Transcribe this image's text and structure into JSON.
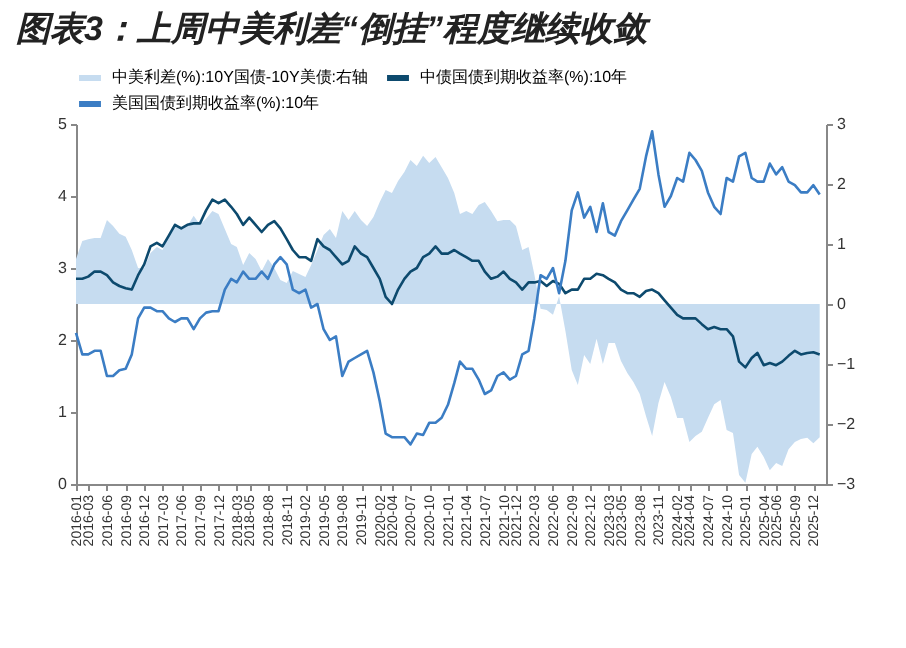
{
  "chart_data": {
    "type": "line",
    "title": "图表3：上周中美利差“倒挂”程度继续收敛",
    "x": [
      "2016-01",
      "2016-02",
      "2016-03",
      "2016-04",
      "2016-05",
      "2016-06",
      "2016-07",
      "2016-08",
      "2016-09",
      "2016-10",
      "2016-11",
      "2016-12",
      "2017-01",
      "2017-02",
      "2017-03",
      "2017-04",
      "2017-05",
      "2017-06",
      "2017-07",
      "2017-08",
      "2017-09",
      "2017-10",
      "2017-11",
      "2017-12",
      "2018-01",
      "2018-02",
      "2018-03",
      "2018-04",
      "2018-05",
      "2018-06",
      "2018-07",
      "2018-08",
      "2018-09",
      "2018-10",
      "2018-11",
      "2018-12",
      "2019-01",
      "2019-02",
      "2019-03",
      "2019-04",
      "2019-05",
      "2019-06",
      "2019-07",
      "2019-08",
      "2019-09",
      "2019-10",
      "2019-11",
      "2019-12",
      "2020-01",
      "2020-02",
      "2020-03",
      "2020-04",
      "2020-05",
      "2020-06",
      "2020-07",
      "2020-08",
      "2020-09",
      "2020-10",
      "2020-11",
      "2020-12",
      "2021-01",
      "2021-02",
      "2021-03",
      "2021-04",
      "2021-05",
      "2021-06",
      "2021-07",
      "2021-08",
      "2021-09",
      "2021-10",
      "2021-11",
      "2021-12",
      "2022-01",
      "2022-02",
      "2022-03",
      "2022-04",
      "2022-05",
      "2022-06",
      "2022-07",
      "2022-08",
      "2022-09",
      "2022-10",
      "2022-11",
      "2022-12",
      "2023-01",
      "2023-02",
      "2023-03",
      "2023-04",
      "2023-05",
      "2023-06",
      "2023-07",
      "2023-08",
      "2023-09",
      "2023-10",
      "2023-11",
      "2023-12",
      "2024-01",
      "2024-02",
      "2024-03",
      "2024-04",
      "2024-05",
      "2024-06",
      "2024-07",
      "2024-08",
      "2024-09",
      "2024-10",
      "2024-11",
      "2024-12",
      "2025-01",
      "2025-02",
      "2025-03",
      "2025-04",
      "2025-05",
      "2025-06",
      "2025-07",
      "2025-08",
      "2025-09",
      "2025-10",
      "2025-11",
      "2025-12",
      "2026-01"
    ],
    "series": [
      {
        "name": "中美利差(%):10Y国债-10Y美债:右轴",
        "type": "area",
        "axis": "y2",
        "color": "#c6dcf0",
        "values": [
          0.75,
          1.05,
          1.08,
          1.1,
          1.1,
          1.4,
          1.3,
          1.17,
          1.12,
          0.9,
          0.6,
          0.6,
          0.85,
          0.95,
          0.9,
          1.15,
          1.35,
          1.25,
          1.3,
          1.47,
          1.32,
          1.42,
          1.55,
          1.5,
          1.25,
          1.0,
          0.95,
          0.65,
          0.85,
          0.75,
          0.55,
          0.75,
          0.6,
          0.4,
          0.35,
          0.55,
          0.5,
          0.45,
          0.65,
          0.9,
          1.15,
          1.25,
          1.1,
          1.55,
          1.4,
          1.55,
          1.4,
          1.3,
          1.45,
          1.7,
          1.9,
          1.85,
          2.05,
          2.2,
          2.4,
          2.3,
          2.47,
          2.35,
          2.45,
          2.28,
          2.1,
          1.85,
          1.5,
          1.55,
          1.5,
          1.65,
          1.7,
          1.55,
          1.38,
          1.4,
          1.4,
          1.3,
          0.9,
          0.95,
          0.5,
          -0.08,
          -0.1,
          -0.18,
          0.13,
          -0.45,
          -1.1,
          -1.35,
          -0.85,
          -1.0,
          -0.58,
          -1.0,
          -0.65,
          -0.65,
          -0.95,
          -1.15,
          -1.3,
          -1.5,
          -1.87,
          -2.2,
          -1.65,
          -1.3,
          -1.55,
          -1.9,
          -1.9,
          -2.3,
          -2.2,
          -2.13,
          -1.9,
          -1.67,
          -1.6,
          -2.1,
          -2.15,
          -2.85,
          -2.98,
          -2.5,
          -2.38,
          -2.55,
          -2.77,
          -2.65,
          -2.7,
          -2.42,
          -2.3,
          -2.25,
          -2.23,
          -2.32,
          -2.22
        ]
      },
      {
        "name": "中债国债到期收益率(%):10年",
        "color": "#0d4a6e",
        "values": [
          2.85,
          2.85,
          2.88,
          2.95,
          2.95,
          2.9,
          2.8,
          2.75,
          2.72,
          2.7,
          2.9,
          3.05,
          3.3,
          3.35,
          3.3,
          3.45,
          3.6,
          3.55,
          3.6,
          3.62,
          3.62,
          3.8,
          3.95,
          3.9,
          3.95,
          3.85,
          3.75,
          3.6,
          3.7,
          3.6,
          3.5,
          3.6,
          3.65,
          3.55,
          3.4,
          3.25,
          3.15,
          3.15,
          3.1,
          3.4,
          3.3,
          3.25,
          3.15,
          3.05,
          3.1,
          3.3,
          3.2,
          3.15,
          3.0,
          2.85,
          2.6,
          2.5,
          2.7,
          2.85,
          2.95,
          3.0,
          3.15,
          3.2,
          3.3,
          3.2,
          3.2,
          3.25,
          3.2,
          3.15,
          3.1,
          3.1,
          2.95,
          2.85,
          2.88,
          2.95,
          2.85,
          2.8,
          2.7,
          2.8,
          2.8,
          2.82,
          2.75,
          2.82,
          2.78,
          2.65,
          2.7,
          2.7,
          2.85,
          2.85,
          2.92,
          2.9,
          2.85,
          2.8,
          2.7,
          2.65,
          2.65,
          2.6,
          2.68,
          2.7,
          2.65,
          2.55,
          2.45,
          2.35,
          2.3,
          2.3,
          2.3,
          2.22,
          2.15,
          2.18,
          2.15,
          2.15,
          2.05,
          1.7,
          1.62,
          1.75,
          1.82,
          1.65,
          1.68,
          1.65,
          1.7,
          1.78,
          1.85,
          1.8,
          1.82,
          1.83,
          1.8
        ]
      },
      {
        "name": "美国国债到期收益率(%):10年",
        "color": "#3b7dc4",
        "values": [
          2.1,
          1.8,
          1.8,
          1.85,
          1.85,
          1.5,
          1.5,
          1.58,
          1.6,
          1.8,
          2.3,
          2.45,
          2.45,
          2.4,
          2.4,
          2.3,
          2.25,
          2.3,
          2.3,
          2.15,
          2.3,
          2.38,
          2.4,
          2.4,
          2.7,
          2.85,
          2.8,
          2.95,
          2.85,
          2.85,
          2.95,
          2.85,
          3.05,
          3.15,
          3.05,
          2.7,
          2.65,
          2.7,
          2.45,
          2.5,
          2.15,
          2.0,
          2.05,
          1.5,
          1.7,
          1.75,
          1.8,
          1.85,
          1.55,
          1.15,
          0.7,
          0.65,
          0.65,
          0.65,
          0.55,
          0.7,
          0.68,
          0.85,
          0.85,
          0.92,
          1.1,
          1.4,
          1.7,
          1.6,
          1.6,
          1.45,
          1.25,
          1.3,
          1.5,
          1.55,
          1.45,
          1.5,
          1.8,
          1.85,
          2.3,
          2.9,
          2.85,
          3.0,
          2.65,
          3.1,
          3.8,
          4.05,
          3.7,
          3.85,
          3.5,
          3.9,
          3.5,
          3.45,
          3.65,
          3.8,
          3.95,
          4.1,
          4.55,
          4.9,
          4.3,
          3.85,
          4.0,
          4.25,
          4.2,
          4.6,
          4.5,
          4.35,
          4.05,
          3.85,
          3.75,
          4.25,
          4.2,
          4.55,
          4.6,
          4.25,
          4.2,
          4.2,
          4.45,
          4.3,
          4.4,
          4.2,
          4.15,
          4.05,
          4.05,
          4.15,
          4.02
        ]
      }
    ],
    "xlim": [
      "2016-01",
      "2026-02"
    ],
    "xticks": [
      "2016-01",
      "2016-03",
      "2016-06",
      "2016-09",
      "2016-12",
      "2017-03",
      "2017-06",
      "2017-09",
      "2017-12",
      "2018-03",
      "2018-05",
      "2018-08",
      "2018-11",
      "2019-02",
      "2019-05",
      "2019-08",
      "2019-11",
      "2020-02",
      "2020-04",
      "2020-07",
      "2020-10",
      "2021-01",
      "2021-04",
      "2021-07",
      "2021-10",
      "2021-12",
      "2022-03",
      "2022-06",
      "2022-09",
      "2022-12",
      "2023-03",
      "2023-05",
      "2023-08",
      "2023-11",
      "2024-02",
      "2024-04",
      "2024-07",
      "2024-10",
      "2025-01",
      "2025-04",
      "2025-06",
      "2025-09",
      "2025-12"
    ],
    "ylim": [
      0,
      5
    ],
    "yticks": [
      0,
      1,
      2,
      3,
      4,
      5
    ],
    "y2lim": [
      -3,
      3
    ],
    "y2ticks": [
      -3,
      -2,
      -1,
      0,
      1,
      2,
      3
    ],
    "legend": "top",
    "grid": false
  }
}
